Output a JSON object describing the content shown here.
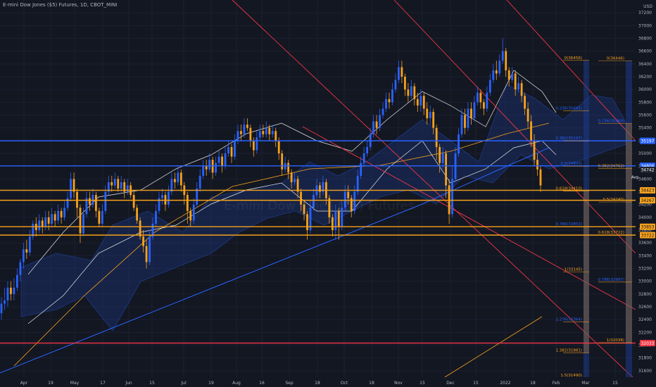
{
  "title": "E-mini Dow Jones ($5) Futures, 1D, CBOT_MINI",
  "currency": "USD",
  "watermark": "E-mini Dow Jones ($5) Futures",
  "chart_data": {
    "type": "candlestick",
    "ylim": [
      31500,
      37400
    ],
    "x_labels": [
      "Apr",
      "19",
      "May",
      "17",
      "Jun",
      "15",
      "Jul",
      "19",
      "Aug",
      "16",
      "Sep",
      "18",
      "Oct",
      "18",
      "Nov",
      "15",
      "Dec",
      "15",
      "2022",
      "18",
      "Feb",
      "Mar",
      "15"
    ],
    "y_ticks": [
      31600,
      31800,
      32000,
      32200,
      32400,
      32600,
      32800,
      33000,
      33200,
      33400,
      33600,
      33800,
      34000,
      34200,
      34400,
      34600,
      34800,
      35000,
      35200,
      35400,
      35600,
      35800,
      36000,
      36200,
      36400,
      36600,
      36800,
      37000,
      37200
    ],
    "horizontal_levels": [
      {
        "price": 35197,
        "label": "35197",
        "color": "#2962ff"
      },
      {
        "price": 34806,
        "label": "34806",
        "color": "#2962ff"
      },
      {
        "price": 34742,
        "label": "34742",
        "color": "#1e222d"
      },
      {
        "price": 34423,
        "label": "34423",
        "color": "#f7a21b"
      },
      {
        "price": 34267,
        "label": "34267",
        "color": "#f7a21b"
      },
      {
        "price": 33853,
        "label": "33853",
        "color": "#f7a21b"
      },
      {
        "price": 33722,
        "label": "33722",
        "color": "#f7a21b"
      },
      {
        "price": 32033,
        "label": "32033",
        "color": "#f23645"
      }
    ],
    "avg_label": "Avg",
    "fib_left": [
      {
        "price": 36456,
        "label": "0(36456)"
      },
      {
        "price": 35665,
        "label": "0.236(35665)"
      },
      {
        "price": 35197,
        "label": "0.382(35197)"
      },
      {
        "price": 34800,
        "label": "0.5(34800)"
      },
      {
        "price": 34410,
        "label": "0.618(34410)"
      },
      {
        "price": 33853,
        "label": "0.786(33853)"
      },
      {
        "price": 33145,
        "label": "1(33145)"
      },
      {
        "price": 32364,
        "label": "1.276(32364)"
      },
      {
        "price": 31881,
        "label": "1.382(31881)"
      },
      {
        "price": 31490,
        "label": "1.5(31490)"
      }
    ],
    "fib_right": [
      {
        "price": 36446,
        "label": "0(36446)"
      },
      {
        "price": 35469,
        "label": "0.236(35469)"
      },
      {
        "price": 34762,
        "label": "0.382(34762)"
      },
      {
        "price": 34240,
        "label": "0.5(34240)"
      },
      {
        "price": 33722,
        "label": "0.618(33722)"
      },
      {
        "price": 32987,
        "label": "0.786(32987)"
      },
      {
        "price": 32038,
        "label": "1(32038)"
      }
    ],
    "candles": [
      {
        "o": 32500,
        "c": 32650,
        "h": 32750,
        "l": 32400
      },
      {
        "o": 32650,
        "c": 32700,
        "h": 32900,
        "l": 32550
      },
      {
        "o": 32700,
        "c": 32900,
        "h": 33000,
        "l": 32600
      },
      {
        "o": 32900,
        "c": 32800,
        "h": 33000,
        "l": 32700
      },
      {
        "o": 32800,
        "c": 32900,
        "h": 33050,
        "l": 32700
      },
      {
        "o": 32900,
        "c": 33100,
        "h": 33200,
        "l": 32850
      },
      {
        "o": 33100,
        "c": 33300,
        "h": 33350,
        "l": 33000
      },
      {
        "o": 33300,
        "c": 33500,
        "h": 33600,
        "l": 33200
      },
      {
        "o": 33500,
        "c": 33450,
        "h": 33650,
        "l": 33350
      },
      {
        "o": 33450,
        "c": 33700,
        "h": 33800,
        "l": 33400
      },
      {
        "o": 33700,
        "c": 33900,
        "h": 33950,
        "l": 33650
      },
      {
        "o": 33900,
        "c": 33800,
        "h": 34000,
        "l": 33700
      },
      {
        "o": 33800,
        "c": 33950,
        "h": 34050,
        "l": 33750
      },
      {
        "o": 33950,
        "c": 33850,
        "h": 34000,
        "l": 33750
      },
      {
        "o": 33850,
        "c": 34000,
        "h": 34100,
        "l": 33800
      },
      {
        "o": 34000,
        "c": 33900,
        "h": 34100,
        "l": 33800
      },
      {
        "o": 33900,
        "c": 34050,
        "h": 34150,
        "l": 33850
      },
      {
        "o": 34050,
        "c": 33950,
        "h": 34100,
        "l": 33850
      },
      {
        "o": 33950,
        "c": 34100,
        "h": 34200,
        "l": 33900
      },
      {
        "o": 34100,
        "c": 34000,
        "h": 34150,
        "l": 33900
      },
      {
        "o": 34000,
        "c": 34150,
        "h": 34250,
        "l": 33950
      },
      {
        "o": 34150,
        "c": 34300,
        "h": 34400,
        "l": 34100
      },
      {
        "o": 34300,
        "c": 34600,
        "h": 34700,
        "l": 34250
      },
      {
        "o": 34600,
        "c": 34400,
        "h": 34700,
        "l": 34300
      },
      {
        "o": 34400,
        "c": 34150,
        "h": 34450,
        "l": 34000
      },
      {
        "o": 34150,
        "c": 33750,
        "h": 34200,
        "l": 33600
      },
      {
        "o": 33750,
        "c": 34050,
        "h": 34150,
        "l": 33700
      },
      {
        "o": 34050,
        "c": 34300,
        "h": 34400,
        "l": 34000
      },
      {
        "o": 34300,
        "c": 34200,
        "h": 34400,
        "l": 34100
      },
      {
        "o": 34200,
        "c": 34350,
        "h": 34450,
        "l": 34150
      },
      {
        "o": 34350,
        "c": 34100,
        "h": 34400,
        "l": 34000
      },
      {
        "o": 34100,
        "c": 33900,
        "h": 34150,
        "l": 33850
      },
      {
        "o": 33900,
        "c": 34100,
        "h": 34200,
        "l": 33850
      },
      {
        "o": 34100,
        "c": 34400,
        "h": 34500,
        "l": 34050
      },
      {
        "o": 34400,
        "c": 34550,
        "h": 34650,
        "l": 34350
      },
      {
        "o": 34550,
        "c": 34500,
        "h": 34650,
        "l": 34400
      },
      {
        "o": 34500,
        "c": 34600,
        "h": 34700,
        "l": 34450
      },
      {
        "o": 34600,
        "c": 34450,
        "h": 34650,
        "l": 34400
      },
      {
        "o": 34450,
        "c": 34550,
        "h": 34650,
        "l": 34400
      },
      {
        "o": 34550,
        "c": 34400,
        "h": 34600,
        "l": 34300
      },
      {
        "o": 34400,
        "c": 34500,
        "h": 34600,
        "l": 34350
      },
      {
        "o": 34500,
        "c": 34350,
        "h": 34550,
        "l": 34300
      },
      {
        "o": 34350,
        "c": 34150,
        "h": 34400,
        "l": 34100
      },
      {
        "o": 34150,
        "c": 33950,
        "h": 34200,
        "l": 33900
      },
      {
        "o": 33950,
        "c": 33700,
        "h": 34000,
        "l": 33650
      },
      {
        "o": 33700,
        "c": 33550,
        "h": 33800,
        "l": 33450
      },
      {
        "o": 33550,
        "c": 33300,
        "h": 33650,
        "l": 33200
      },
      {
        "o": 33300,
        "c": 33700,
        "h": 33800,
        "l": 33250
      },
      {
        "o": 33700,
        "c": 33900,
        "h": 34000,
        "l": 33650
      },
      {
        "o": 33900,
        "c": 34100,
        "h": 34200,
        "l": 33850
      },
      {
        "o": 34100,
        "c": 34300,
        "h": 34400,
        "l": 34050
      },
      {
        "o": 34300,
        "c": 34350,
        "h": 34450,
        "l": 34200
      },
      {
        "o": 34350,
        "c": 34200,
        "h": 34400,
        "l": 34100
      },
      {
        "o": 34200,
        "c": 34400,
        "h": 34500,
        "l": 34150
      },
      {
        "o": 34400,
        "c": 34600,
        "h": 34700,
        "l": 34350
      },
      {
        "o": 34600,
        "c": 34550,
        "h": 34700,
        "l": 34450
      },
      {
        "o": 34550,
        "c": 34700,
        "h": 34800,
        "l": 34500
      },
      {
        "o": 34700,
        "c": 34500,
        "h": 34750,
        "l": 34400
      },
      {
        "o": 34500,
        "c": 34350,
        "h": 34550,
        "l": 34200
      },
      {
        "o": 34350,
        "c": 34100,
        "h": 34400,
        "l": 33900
      },
      {
        "o": 34100,
        "c": 33950,
        "h": 34150,
        "l": 33850
      },
      {
        "o": 33950,
        "c": 34200,
        "h": 34300,
        "l": 33900
      },
      {
        "o": 34200,
        "c": 34450,
        "h": 34550,
        "l": 34150
      },
      {
        "o": 34450,
        "c": 34650,
        "h": 34750,
        "l": 34400
      },
      {
        "o": 34650,
        "c": 34800,
        "h": 34900,
        "l": 34600
      },
      {
        "o": 34800,
        "c": 34750,
        "h": 34900,
        "l": 34650
      },
      {
        "o": 34750,
        "c": 34900,
        "h": 35000,
        "l": 34700
      },
      {
        "o": 34900,
        "c": 34700,
        "h": 34950,
        "l": 34600
      },
      {
        "o": 34700,
        "c": 34850,
        "h": 34950,
        "l": 34650
      },
      {
        "o": 34850,
        "c": 34950,
        "h": 35050,
        "l": 34800
      },
      {
        "o": 34950,
        "c": 34800,
        "h": 35000,
        "l": 34700
      },
      {
        "o": 34800,
        "c": 35000,
        "h": 35100,
        "l": 34750
      },
      {
        "o": 35000,
        "c": 35100,
        "h": 35200,
        "l": 34950
      },
      {
        "o": 35100,
        "c": 34950,
        "h": 35150,
        "l": 34850
      },
      {
        "o": 34950,
        "c": 35200,
        "h": 35300,
        "l": 34900
      },
      {
        "o": 35200,
        "c": 35350,
        "h": 35450,
        "l": 35150
      },
      {
        "o": 35350,
        "c": 35300,
        "h": 35450,
        "l": 35200
      },
      {
        "o": 35300,
        "c": 35450,
        "h": 35550,
        "l": 35250
      },
      {
        "o": 35450,
        "c": 35400,
        "h": 35550,
        "l": 35350
      },
      {
        "o": 35400,
        "c": 35200,
        "h": 35450,
        "l": 35100
      },
      {
        "o": 35200,
        "c": 35050,
        "h": 35250,
        "l": 34950
      },
      {
        "o": 35050,
        "c": 35250,
        "h": 35350,
        "l": 35000
      },
      {
        "o": 35250,
        "c": 35350,
        "h": 35450,
        "l": 35200
      },
      {
        "o": 35350,
        "c": 35300,
        "h": 35450,
        "l": 35250
      },
      {
        "o": 35300,
        "c": 35400,
        "h": 35500,
        "l": 35250
      },
      {
        "o": 35400,
        "c": 35300,
        "h": 35450,
        "l": 35200
      },
      {
        "o": 35300,
        "c": 35350,
        "h": 35450,
        "l": 35250
      },
      {
        "o": 35350,
        "c": 35200,
        "h": 35400,
        "l": 35100
      },
      {
        "o": 35200,
        "c": 35000,
        "h": 35250,
        "l": 34900
      },
      {
        "o": 35000,
        "c": 34750,
        "h": 35050,
        "l": 34650
      },
      {
        "o": 34750,
        "c": 34850,
        "h": 34950,
        "l": 34700
      },
      {
        "o": 34850,
        "c": 34700,
        "h": 34900,
        "l": 34600
      },
      {
        "o": 34700,
        "c": 34550,
        "h": 34750,
        "l": 34450
      },
      {
        "o": 34550,
        "c": 34600,
        "h": 34700,
        "l": 34500
      },
      {
        "o": 34600,
        "c": 34400,
        "h": 34650,
        "l": 34300
      },
      {
        "o": 34400,
        "c": 34200,
        "h": 34450,
        "l": 34100
      },
      {
        "o": 34200,
        "c": 34050,
        "h": 34250,
        "l": 33950
      },
      {
        "o": 34050,
        "c": 33800,
        "h": 34100,
        "l": 33650
      },
      {
        "o": 33800,
        "c": 34150,
        "h": 34250,
        "l": 33750
      },
      {
        "o": 34150,
        "c": 34350,
        "h": 34450,
        "l": 34100
      },
      {
        "o": 34350,
        "c": 34500,
        "h": 34600,
        "l": 34300
      },
      {
        "o": 34500,
        "c": 34400,
        "h": 34550,
        "l": 34300
      },
      {
        "o": 34400,
        "c": 34550,
        "h": 34650,
        "l": 34350
      },
      {
        "o": 34550,
        "c": 34300,
        "h": 34600,
        "l": 34200
      },
      {
        "o": 34300,
        "c": 34000,
        "h": 34350,
        "l": 33900
      },
      {
        "o": 34000,
        "c": 33800,
        "h": 34050,
        "l": 33700
      },
      {
        "o": 33800,
        "c": 34100,
        "h": 34200,
        "l": 33650
      },
      {
        "o": 34100,
        "c": 33850,
        "h": 34150,
        "l": 33650
      },
      {
        "o": 33850,
        "c": 34150,
        "h": 34250,
        "l": 33800
      },
      {
        "o": 34150,
        "c": 34400,
        "h": 34500,
        "l": 34100
      },
      {
        "o": 34400,
        "c": 34300,
        "h": 34500,
        "l": 34200
      },
      {
        "o": 34300,
        "c": 34100,
        "h": 34350,
        "l": 34000
      },
      {
        "o": 34100,
        "c": 34400,
        "h": 34500,
        "l": 34050
      },
      {
        "o": 34400,
        "c": 34650,
        "h": 34750,
        "l": 34350
      },
      {
        "o": 34650,
        "c": 34850,
        "h": 34950,
        "l": 34600
      },
      {
        "o": 34850,
        "c": 35000,
        "h": 35100,
        "l": 34800
      },
      {
        "o": 35000,
        "c": 35100,
        "h": 35200,
        "l": 34950
      },
      {
        "o": 35100,
        "c": 35300,
        "h": 35400,
        "l": 35050
      },
      {
        "o": 35300,
        "c": 35500,
        "h": 35600,
        "l": 35250
      },
      {
        "o": 35500,
        "c": 35400,
        "h": 35600,
        "l": 35300
      },
      {
        "o": 35400,
        "c": 35600,
        "h": 35700,
        "l": 35350
      },
      {
        "o": 35600,
        "c": 35700,
        "h": 35800,
        "l": 35550
      },
      {
        "o": 35700,
        "c": 35850,
        "h": 35950,
        "l": 35650
      },
      {
        "o": 35850,
        "c": 35800,
        "h": 35950,
        "l": 35700
      },
      {
        "o": 35800,
        "c": 36000,
        "h": 36100,
        "l": 35750
      },
      {
        "o": 36000,
        "c": 36150,
        "h": 36250,
        "l": 35950
      },
      {
        "o": 36150,
        "c": 36350,
        "h": 36450,
        "l": 36100
      },
      {
        "o": 36350,
        "c": 36200,
        "h": 36450,
        "l": 36100
      },
      {
        "o": 36200,
        "c": 36000,
        "h": 36250,
        "l": 35900
      },
      {
        "o": 36000,
        "c": 35900,
        "h": 36100,
        "l": 35800
      },
      {
        "o": 35900,
        "c": 36050,
        "h": 36150,
        "l": 35850
      },
      {
        "o": 36050,
        "c": 35850,
        "h": 36100,
        "l": 35750
      },
      {
        "o": 35850,
        "c": 35750,
        "h": 35950,
        "l": 35650
      },
      {
        "o": 35750,
        "c": 35900,
        "h": 36000,
        "l": 35650
      },
      {
        "o": 35900,
        "c": 35700,
        "h": 35950,
        "l": 35600
      },
      {
        "o": 35700,
        "c": 35550,
        "h": 35800,
        "l": 35450
      },
      {
        "o": 35550,
        "c": 35650,
        "h": 35750,
        "l": 35450
      },
      {
        "o": 35650,
        "c": 35400,
        "h": 35700,
        "l": 35300
      },
      {
        "o": 35400,
        "c": 35100,
        "h": 35450,
        "l": 34900
      },
      {
        "o": 35100,
        "c": 34850,
        "h": 35150,
        "l": 34700
      },
      {
        "o": 34850,
        "c": 35000,
        "h": 35100,
        "l": 34750
      },
      {
        "o": 35000,
        "c": 34500,
        "h": 35050,
        "l": 34300
      },
      {
        "o": 34500,
        "c": 34050,
        "h": 34600,
        "l": 33900
      },
      {
        "o": 34050,
        "c": 34600,
        "h": 34800,
        "l": 34000
      },
      {
        "o": 34600,
        "c": 35000,
        "h": 35100,
        "l": 34550
      },
      {
        "o": 35000,
        "c": 35300,
        "h": 35400,
        "l": 34950
      },
      {
        "o": 35300,
        "c": 35600,
        "h": 35700,
        "l": 35250
      },
      {
        "o": 35600,
        "c": 35400,
        "h": 35700,
        "l": 35300
      },
      {
        "o": 35400,
        "c": 35700,
        "h": 35800,
        "l": 35350
      },
      {
        "o": 35700,
        "c": 35550,
        "h": 35800,
        "l": 35450
      },
      {
        "o": 35550,
        "c": 35800,
        "h": 35900,
        "l": 35500
      },
      {
        "o": 35800,
        "c": 35950,
        "h": 36050,
        "l": 35750
      },
      {
        "o": 35950,
        "c": 35800,
        "h": 36000,
        "l": 35700
      },
      {
        "o": 35800,
        "c": 35700,
        "h": 35850,
        "l": 35600
      },
      {
        "o": 35700,
        "c": 35950,
        "h": 36050,
        "l": 35650
      },
      {
        "o": 35950,
        "c": 36150,
        "h": 36250,
        "l": 35900
      },
      {
        "o": 36150,
        "c": 36300,
        "h": 36400,
        "l": 36100
      },
      {
        "o": 36300,
        "c": 36250,
        "h": 36450,
        "l": 36150
      },
      {
        "o": 36250,
        "c": 36450,
        "h": 36550,
        "l": 36200
      },
      {
        "o": 36450,
        "c": 36600,
        "h": 36800,
        "l": 36400
      },
      {
        "o": 36600,
        "c": 36300,
        "h": 36650,
        "l": 36200
      },
      {
        "o": 36300,
        "c": 36150,
        "h": 36350,
        "l": 36050
      },
      {
        "o": 36150,
        "c": 36250,
        "h": 36350,
        "l": 36100
      },
      {
        "o": 36250,
        "c": 36000,
        "h": 36300,
        "l": 35900
      },
      {
        "o": 36000,
        "c": 36100,
        "h": 36200,
        "l": 35950
      },
      {
        "o": 36100,
        "c": 35900,
        "h": 36150,
        "l": 35800
      },
      {
        "o": 35900,
        "c": 35700,
        "h": 35950,
        "l": 35600
      },
      {
        "o": 35700,
        "c": 35500,
        "h": 35800,
        "l": 35400
      },
      {
        "o": 35500,
        "c": 35200,
        "h": 35600,
        "l": 35100
      },
      {
        "o": 35200,
        "c": 34900,
        "h": 35300,
        "l": 34800
      },
      {
        "o": 34900,
        "c": 34750,
        "h": 35000,
        "l": 34650
      },
      {
        "o": 34750,
        "c": 34500,
        "h": 34800,
        "l": 34400
      }
    ]
  }
}
